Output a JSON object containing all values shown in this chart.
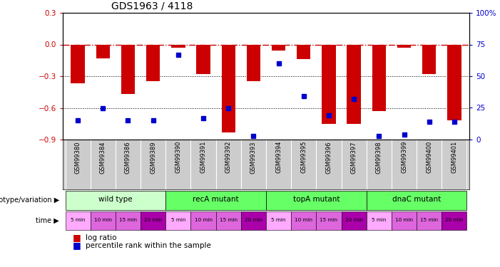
{
  "title": "GDS1963 / 4118",
  "samples": [
    "GSM99380",
    "GSM99384",
    "GSM99386",
    "GSM99389",
    "GSM99390",
    "GSM99391",
    "GSM99392",
    "GSM99393",
    "GSM99394",
    "GSM99395",
    "GSM99396",
    "GSM99397",
    "GSM99398",
    "GSM99399",
    "GSM99400",
    "GSM99401"
  ],
  "log_ratio": [
    -0.37,
    -0.13,
    -0.47,
    -0.35,
    -0.03,
    -0.28,
    -0.83,
    -0.35,
    -0.06,
    -0.14,
    -0.75,
    -0.75,
    -0.63,
    -0.03,
    -0.28,
    -0.72
  ],
  "percentile": [
    15,
    25,
    15,
    15,
    67,
    17,
    25,
    3,
    60,
    34,
    19,
    32,
    3,
    4,
    14,
    14
  ],
  "bar_color": "#cc0000",
  "dot_color": "#0000cc",
  "ylim_left": [
    -0.9,
    0.3
  ],
  "ylim_right": [
    0,
    100
  ],
  "yticks_left": [
    0.3,
    0.0,
    -0.3,
    -0.6,
    -0.9
  ],
  "yticks_right": [
    100,
    75,
    50,
    25,
    0
  ],
  "groups": [
    {
      "label": "wild type",
      "start": 0,
      "end": 4,
      "color": "#ccffcc"
    },
    {
      "label": "recA mutant",
      "start": 4,
      "end": 8,
      "color": "#66ff66"
    },
    {
      "label": "topA mutant",
      "start": 8,
      "end": 12,
      "color": "#66ff66"
    },
    {
      "label": "dnaC mutant",
      "start": 12,
      "end": 16,
      "color": "#66ff66"
    }
  ],
  "time_labels": [
    "5 min",
    "10 min",
    "15 min",
    "20 min",
    "5 min",
    "10 min",
    "15 min",
    "20 min",
    "5 min",
    "10 min",
    "15 min",
    "20 min",
    "5 min",
    "10 min",
    "15 min",
    "20 min"
  ],
  "time_colors": [
    "#ffaaff",
    "#dd66dd",
    "#dd66dd",
    "#aa00aa",
    "#ffaaff",
    "#dd66dd",
    "#dd66dd",
    "#aa00aa",
    "#ffaaff",
    "#dd66dd",
    "#dd66dd",
    "#aa00aa",
    "#ffaaff",
    "#dd66dd",
    "#dd66dd",
    "#aa00aa"
  ],
  "genotype_label": "genotype/variation",
  "time_label": "time",
  "legend_bar": "log ratio",
  "legend_dot": "percentile rank within the sample",
  "background_color": "#ffffff"
}
